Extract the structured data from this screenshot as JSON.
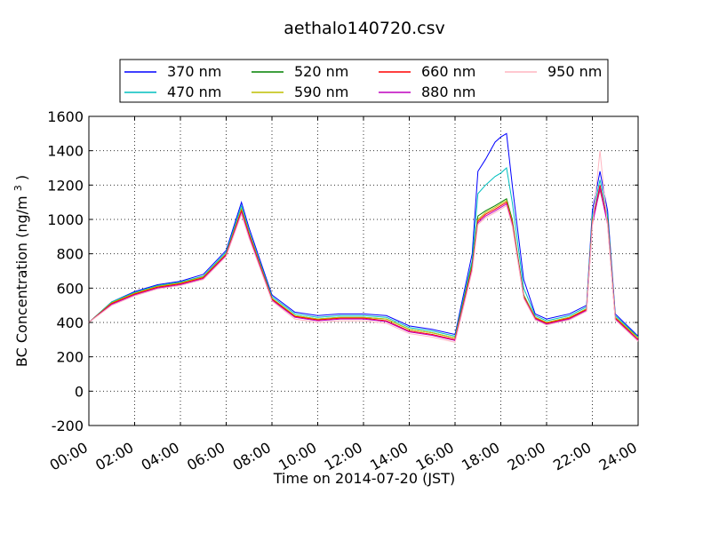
{
  "chart_data": {
    "type": "line",
    "title": "aethalo140720.csv",
    "xlabel": "Time on 2014-07-20 (JST)",
    "ylabel": {
      "text": "BC Concentration (ng/m",
      "superscript": "3",
      "suffix": ")"
    },
    "xlim": [
      "00:00",
      "24:00"
    ],
    "ylim": [
      -200,
      1600
    ],
    "xticks": [
      "00:00",
      "02:00",
      "04:00",
      "06:00",
      "08:00",
      "10:00",
      "12:00",
      "14:00",
      "16:00",
      "18:00",
      "20:00",
      "22:00",
      "24:00"
    ],
    "yticks": [
      "-200",
      "0",
      "200",
      "400",
      "600",
      "800",
      "1000",
      "1200",
      "1400",
      "1600"
    ],
    "grid": true,
    "legend_position": "top",
    "series": [
      {
        "name": "370 nm",
        "color": "#0000ff",
        "x": [
          "00:00",
          "01:00",
          "02:00",
          "03:00",
          "04:00",
          "05:00",
          "06:00",
          "06:40",
          "07:00",
          "08:00",
          "09:00",
          "10:00",
          "11:00",
          "12:00",
          "13:00",
          "14:00",
          "15:00",
          "16:00",
          "16:45",
          "17:00",
          "17:20",
          "17:45",
          "18:00",
          "18:15",
          "18:30",
          "19:00",
          "19:30",
          "20:00",
          "21:00",
          "21:45",
          "22:00",
          "22:20",
          "22:40",
          "23:00",
          "24:00"
        ],
        "values": [
          400,
          520,
          580,
          620,
          640,
          680,
          820,
          1100,
          950,
          560,
          460,
          440,
          450,
          450,
          440,
          380,
          360,
          330,
          800,
          1280,
          1350,
          1450,
          1480,
          1500,
          1200,
          650,
          450,
          420,
          450,
          500,
          1050,
          1280,
          1050,
          450,
          320
        ]
      },
      {
        "name": "470 nm",
        "color": "#00bfbf",
        "x": [
          "00:00",
          "01:00",
          "02:00",
          "03:00",
          "04:00",
          "05:00",
          "06:00",
          "06:40",
          "07:00",
          "08:00",
          "09:00",
          "10:00",
          "11:00",
          "12:00",
          "13:00",
          "14:00",
          "15:00",
          "16:00",
          "16:45",
          "17:00",
          "17:20",
          "17:45",
          "18:00",
          "18:15",
          "18:30",
          "19:00",
          "19:30",
          "20:00",
          "21:00",
          "21:45",
          "22:00",
          "22:20",
          "22:40",
          "23:00",
          "24:00"
        ],
        "values": [
          400,
          520,
          575,
          615,
          635,
          670,
          810,
          1080,
          930,
          550,
          450,
          430,
          440,
          440,
          430,
          370,
          350,
          320,
          760,
          1150,
          1200,
          1250,
          1270,
          1300,
          1100,
          600,
          440,
          410,
          440,
          490,
          1020,
          1230,
          1020,
          440,
          315
        ]
      },
      {
        "name": "520 nm",
        "color": "#008000",
        "x": [
          "00:00",
          "01:00",
          "02:00",
          "03:00",
          "04:00",
          "05:00",
          "06:00",
          "06:40",
          "07:00",
          "08:00",
          "09:00",
          "10:00",
          "11:00",
          "12:00",
          "13:00",
          "14:00",
          "15:00",
          "16:00",
          "16:45",
          "17:00",
          "17:20",
          "17:45",
          "18:00",
          "18:15",
          "18:30",
          "19:00",
          "19:30",
          "20:00",
          "21:00",
          "21:45",
          "22:00",
          "22:20",
          "22:40",
          "23:00",
          "24:00"
        ],
        "values": [
          400,
          515,
          570,
          610,
          630,
          665,
          800,
          1060,
          920,
          540,
          440,
          420,
          430,
          430,
          420,
          360,
          340,
          310,
          740,
          1020,
          1050,
          1080,
          1100,
          1120,
          1000,
          560,
          430,
          400,
          430,
          480,
          1000,
          1180,
          1000,
          430,
          310
        ]
      },
      {
        "name": "590 nm",
        "color": "#bfbf00",
        "x": [
          "00:00",
          "01:00",
          "02:00",
          "03:00",
          "04:00",
          "05:00",
          "06:00",
          "06:40",
          "07:00",
          "08:00",
          "09:00",
          "10:00",
          "11:00",
          "12:00",
          "13:00",
          "14:00",
          "15:00",
          "16:00",
          "16:45",
          "17:00",
          "17:20",
          "17:45",
          "18:00",
          "18:15",
          "18:30",
          "19:00",
          "19:30",
          "20:00",
          "21:00",
          "21:45",
          "22:00",
          "22:20",
          "22:40",
          "23:00",
          "24:00"
        ],
        "values": [
          400,
          515,
          570,
          610,
          630,
          665,
          800,
          1060,
          920,
          540,
          440,
          420,
          430,
          430,
          420,
          360,
          340,
          310,
          730,
          1000,
          1040,
          1070,
          1090,
          1110,
          990,
          555,
          430,
          400,
          430,
          480,
          990,
          1170,
          990,
          430,
          310
        ]
      },
      {
        "name": "660 nm",
        "color": "#ff0000",
        "x": [
          "00:00",
          "01:00",
          "02:00",
          "03:00",
          "04:00",
          "05:00",
          "06:00",
          "06:40",
          "07:00",
          "08:00",
          "09:00",
          "10:00",
          "11:00",
          "12:00",
          "13:00",
          "14:00",
          "15:00",
          "16:00",
          "16:45",
          "17:00",
          "17:20",
          "17:45",
          "18:00",
          "18:15",
          "18:30",
          "19:00",
          "19:30",
          "20:00",
          "21:00",
          "21:45",
          "22:00",
          "22:20",
          "22:40",
          "23:00",
          "24:00"
        ],
        "values": [
          400,
          510,
          565,
          605,
          625,
          660,
          795,
          1050,
          910,
          535,
          435,
          415,
          425,
          425,
          410,
          350,
          330,
          300,
          720,
          990,
          1030,
          1060,
          1080,
          1100,
          980,
          550,
          425,
          395,
          425,
          475,
          980,
          1200,
          980,
          425,
          300
        ]
      },
      {
        "name": "880 nm",
        "color": "#bf00bf",
        "x": [
          "00:00",
          "01:00",
          "02:00",
          "03:00",
          "04:00",
          "05:00",
          "06:00",
          "06:40",
          "07:00",
          "08:00",
          "09:00",
          "10:00",
          "11:00",
          "12:00",
          "13:00",
          "14:00",
          "15:00",
          "16:00",
          "16:45",
          "17:00",
          "17:20",
          "17:45",
          "18:00",
          "18:15",
          "18:30",
          "19:00",
          "19:30",
          "20:00",
          "21:00",
          "21:45",
          "22:00",
          "22:20",
          "22:40",
          "23:00",
          "24:00"
        ],
        "values": [
          400,
          505,
          560,
          600,
          620,
          655,
          790,
          1040,
          900,
          530,
          430,
          410,
          420,
          420,
          405,
          345,
          325,
          295,
          710,
          980,
          1020,
          1050,
          1070,
          1090,
          970,
          545,
          420,
          390,
          420,
          470,
          970,
          1180,
          970,
          420,
          295
        ]
      },
      {
        "name": "950 nm",
        "color": "#ffb6c1",
        "x": [
          "00:00",
          "01:00",
          "02:00",
          "03:00",
          "04:00",
          "05:00",
          "06:00",
          "06:40",
          "07:00",
          "08:00",
          "09:00",
          "10:00",
          "11:00",
          "12:00",
          "13:00",
          "14:00",
          "15:00",
          "16:00",
          "16:45",
          "17:00",
          "17:20",
          "17:45",
          "18:00",
          "18:15",
          "18:30",
          "19:00",
          "19:30",
          "20:00",
          "21:00",
          "21:45",
          "22:00",
          "22:20",
          "22:40",
          "23:00",
          "24:00"
        ],
        "values": [
          400,
          500,
          555,
          595,
          615,
          650,
          785,
          1030,
          890,
          525,
          420,
          400,
          410,
          410,
          395,
          335,
          315,
          285,
          700,
          970,
          1010,
          1040,
          1060,
          1080,
          960,
          540,
          415,
          385,
          415,
          465,
          960,
          1400,
          960,
          415,
          290
        ]
      }
    ]
  }
}
